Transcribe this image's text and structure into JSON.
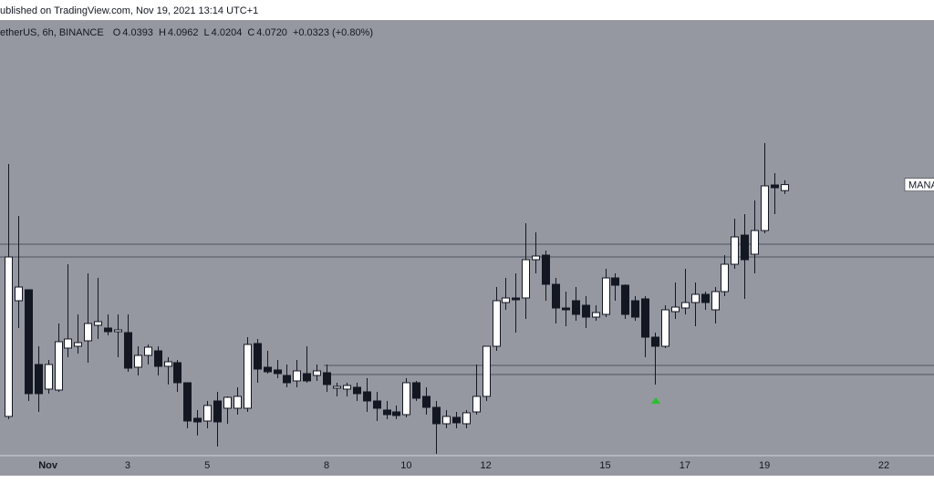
{
  "header": {
    "published": "ublished on TradingView.com, Nov 19, 2021 13:14 UTC+1"
  },
  "chart_data": {
    "type": "candlestick",
    "symbol": "etherUS, 6h, BINANCE",
    "ohlc_legend": [
      {
        "key": "O",
        "text": "4.0393"
      },
      {
        "key": "H",
        "text": "4.0962"
      },
      {
        "key": "L",
        "text": "4.0204"
      },
      {
        "key": "C",
        "text": "4.0720"
      }
    ],
    "change": "+0.0323 (+0.80%)",
    "price_label": "MANA",
    "up_color": "#ffffff",
    "down_color": "#131722",
    "wick_color": "#131722",
    "background": "#9598a1",
    "x": [
      0,
      0.25,
      0.5,
      0.75,
      1,
      1.25,
      1.5,
      1.75,
      2,
      2.25,
      2.5,
      2.75,
      3,
      3.25,
      3.5,
      3.75,
      4,
      4.25,
      4.5,
      4.75,
      5,
      5.25,
      5.5,
      5.75,
      6,
      6.25,
      6.5,
      6.75,
      7,
      7.25,
      7.5,
      7.75,
      8,
      8.25,
      8.5,
      8.75,
      9,
      9.25,
      9.5,
      9.75,
      10,
      10.25,
      10.5,
      10.75,
      11,
      11.25,
      11.5,
      11.75,
      12,
      12.25,
      12.5,
      12.75,
      13,
      13.25,
      13.5,
      13.75,
      14,
      14.25,
      14.5,
      14.75,
      15,
      15.25,
      15.5,
      15.75,
      16,
      16.25,
      16.5,
      16.75,
      17,
      17.25,
      17.5,
      17.75,
      18,
      18.25,
      18.5,
      18.75,
      19,
      19.25,
      19.5
    ],
    "open": [
      2.8,
      3.435,
      3.495,
      3.085,
      2.95,
      2.945,
      3.175,
      3.185,
      3.215,
      3.3,
      3.285,
      3.265,
      3.26,
      3.07,
      3.135,
      3.16,
      3.075,
      3.095,
      2.985,
      2.79,
      2.775,
      2.885,
      2.845,
      2.845,
      2.845,
      3.2,
      3.07,
      3.055,
      3.025,
      2.995,
      3.035,
      3.025,
      3.04,
      2.955,
      2.95,
      2.96,
      2.935,
      2.885,
      2.835,
      2.825,
      2.81,
      2.985,
      2.91,
      2.85,
      2.76,
      2.795,
      2.76,
      2.825,
      2.91,
      3.185,
      3.425,
      3.45,
      3.45,
      3.66,
      3.685,
      3.525,
      3.395,
      3.435,
      3.41,
      3.345,
      3.36,
      3.56,
      3.52,
      3.435,
      3.445,
      3.235,
      3.185,
      3.375,
      3.395,
      3.425,
      3.47,
      3.385,
      3.485,
      3.635,
      3.795,
      3.69,
      3.82,
      4.07,
      4.0393
    ],
    "high": [
      4.185,
      3.9,
      3.495,
      3.185,
      3.11,
      3.31,
      3.635,
      3.36,
      3.585,
      3.56,
      3.36,
      3.36,
      3.36,
      3.185,
      3.195,
      3.185,
      3.125,
      3.11,
      2.985,
      2.835,
      2.885,
      2.935,
      2.91,
      2.96,
      3.235,
      3.225,
      3.16,
      3.11,
      3.085,
      3.11,
      3.185,
      3.085,
      3.085,
      2.985,
      2.985,
      2.985,
      3.01,
      2.935,
      2.885,
      2.86,
      3.01,
      2.995,
      2.96,
      2.885,
      2.835,
      2.825,
      2.835,
      3.085,
      3.185,
      3.51,
      3.56,
      3.585,
      3.86,
      3.81,
      3.71,
      3.56,
      3.485,
      3.51,
      3.46,
      3.41,
      3.61,
      3.585,
      3.525,
      3.46,
      3.46,
      3.26,
      3.41,
      3.535,
      3.61,
      3.535,
      3.485,
      3.51,
      3.685,
      3.885,
      3.91,
      3.985,
      4.3,
      4.135,
      4.0962
    ],
    "low": [
      2.785,
      3.285,
      2.885,
      2.825,
      2.925,
      2.935,
      3.125,
      3.145,
      3.095,
      3.225,
      3.245,
      3.125,
      3.045,
      3.025,
      3.085,
      3.025,
      2.975,
      2.935,
      2.735,
      2.695,
      2.735,
      2.635,
      2.76,
      2.81,
      2.825,
      2.985,
      3.035,
      3.01,
      2.96,
      2.96,
      2.985,
      2.995,
      2.935,
      2.91,
      2.91,
      2.885,
      2.825,
      2.775,
      2.785,
      2.785,
      2.795,
      2.885,
      2.81,
      2.595,
      2.735,
      2.735,
      2.735,
      2.81,
      2.885,
      3.16,
      3.385,
      3.26,
      3.335,
      3.585,
      3.435,
      3.31,
      3.295,
      3.325,
      3.285,
      3.325,
      3.345,
      3.435,
      3.335,
      3.325,
      3.125,
      2.975,
      3.175,
      3.335,
      3.36,
      3.295,
      3.385,
      3.31,
      3.46,
      3.61,
      3.445,
      3.585,
      3.805,
      3.91,
      4.0204
    ],
    "close": [
      3.675,
      3.51,
      2.925,
      2.925,
      3.085,
      3.21,
      3.225,
      3.205,
      3.31,
      3.32,
      3.265,
      3.275,
      3.065,
      3.135,
      3.18,
      3.075,
      3.1,
      2.985,
      2.775,
      2.77,
      2.86,
      2.77,
      2.905,
      2.91,
      3.195,
      3.06,
      3.045,
      3.035,
      2.985,
      3.05,
      2.995,
      3.05,
      2.975,
      2.965,
      2.97,
      2.925,
      2.885,
      2.845,
      2.81,
      2.805,
      2.985,
      2.9,
      2.85,
      2.76,
      2.8,
      2.765,
      2.82,
      2.91,
      3.185,
      3.435,
      3.45,
      3.44,
      3.66,
      3.68,
      3.525,
      3.395,
      3.385,
      3.36,
      3.345,
      3.37,
      3.56,
      3.52,
      3.36,
      3.345,
      3.235,
      3.185,
      3.385,
      3.4,
      3.425,
      3.47,
      3.425,
      3.485,
      3.635,
      3.785,
      3.66,
      3.82,
      4.065,
      4.055,
      4.072
    ],
    "levels": [
      3.745,
      3.675,
      3.08,
      3.03
    ],
    "xlim": [
      -0.206,
      23.26
    ],
    "ylim": [
      2.585,
      4.975
    ],
    "xticks": [
      {
        "value": 1,
        "label": "Nov"
      },
      3,
      5,
      8,
      10,
      12,
      15,
      17,
      19,
      22
    ]
  }
}
